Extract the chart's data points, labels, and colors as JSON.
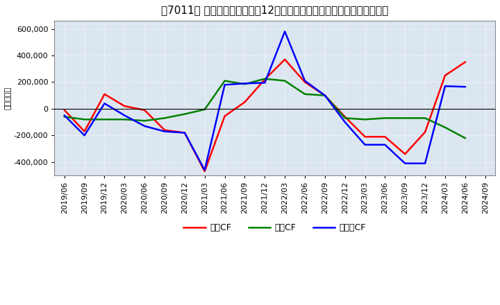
{
  "title": "、7011、 キャッシュフローの12か月移動合計の対前年同期増減額の推移",
  "ylabel": "（百万円）",
  "background_color": "#ffffff",
  "plot_bg_color": "#dce6f0",
  "grid_color": "#ffffff",
  "ylim": [
    -500000,
    660000
  ],
  "yticks": [
    -400000,
    -200000,
    0,
    200000,
    400000,
    600000
  ],
  "ytick_labels": [
    "-400,000",
    "-200,000",
    "0",
    "200,000",
    "400,000",
    "600,000"
  ],
  "x_labels": [
    "2019/06",
    "2019/09",
    "2019/12",
    "2020/03",
    "2020/06",
    "2020/09",
    "2020/12",
    "2021/03",
    "2021/06",
    "2021/09",
    "2021/12",
    "2022/03",
    "2022/06",
    "2022/09",
    "2022/12",
    "2023/03",
    "2023/06",
    "2023/09",
    "2023/12",
    "2024/03",
    "2024/06",
    "2024/09"
  ],
  "operating_cf": [
    -10000,
    -170000,
    110000,
    20000,
    -10000,
    -160000,
    -180000,
    -470000,
    -55000,
    50000,
    220000,
    370000,
    200000,
    100000,
    -60000,
    -210000,
    -210000,
    -340000,
    -175000,
    250000,
    350000,
    null
  ],
  "investing_cf": [
    -60000,
    -80000,
    -80000,
    -80000,
    -90000,
    -70000,
    -40000,
    -5000,
    210000,
    185000,
    225000,
    210000,
    110000,
    100000,
    -70000,
    -80000,
    -70000,
    -70000,
    -70000,
    -140000,
    -220000,
    null
  ],
  "free_cf": [
    -50000,
    -200000,
    40000,
    -50000,
    -130000,
    -170000,
    -180000,
    -460000,
    180000,
    190000,
    195000,
    580000,
    210000,
    100000,
    -100000,
    -270000,
    -270000,
    -410000,
    -410000,
    170000,
    165000,
    null
  ],
  "line_colors": {
    "operating": "#ff0000",
    "investing": "#008000",
    "free": "#0000ff"
  },
  "legend_labels": {
    "operating": "営業CF",
    "investing": "投資CF",
    "free": "フリーCF"
  },
  "title_fontsize": 11,
  "axis_fontsize": 8,
  "legend_fontsize": 9
}
